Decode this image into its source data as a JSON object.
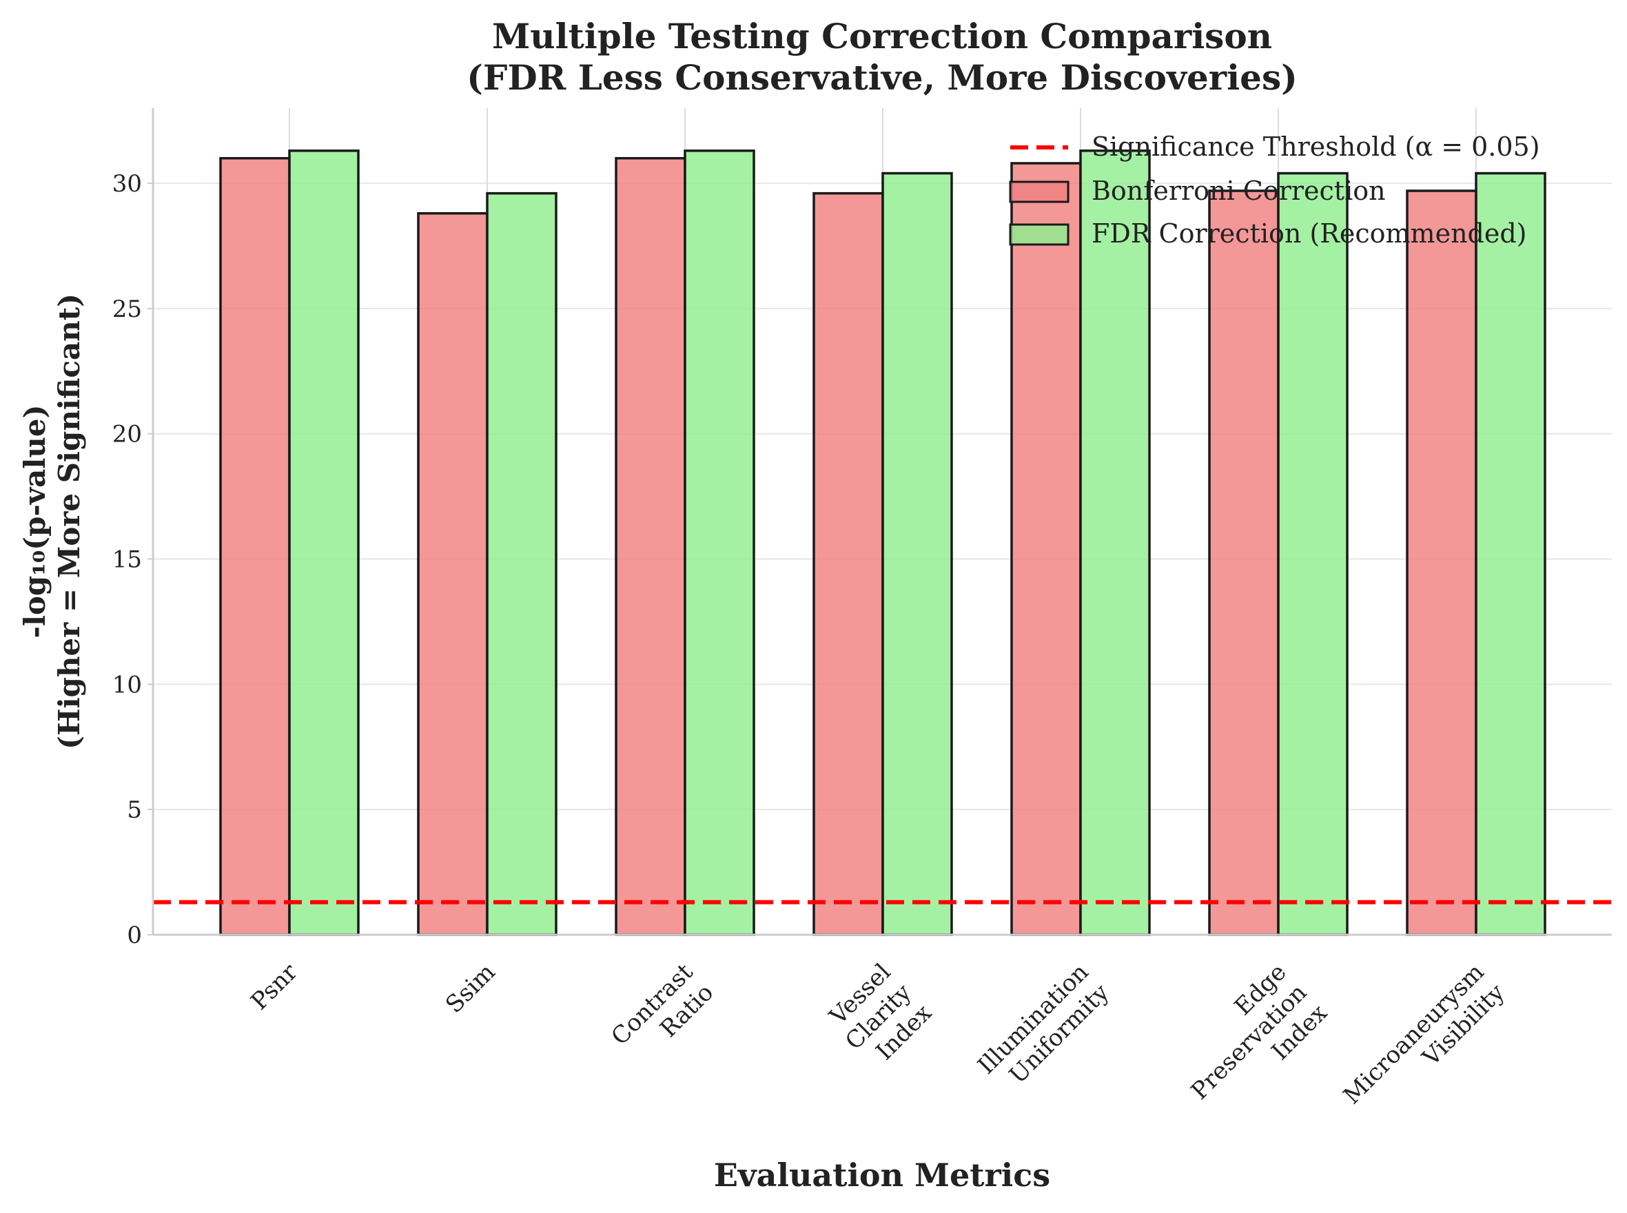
{
  "chart_data": {
    "type": "bar",
    "title": "Multiple Testing Correction Comparison\n(FDR Less Conservative, More Discoveries)",
    "xlabel": "Evaluation Metrics",
    "ylabel": "-log₁₀(p-value)\n(Higher = More Significant)",
    "ylim": [
      0,
      33
    ],
    "yticks": [
      0,
      5,
      10,
      15,
      20,
      25,
      30
    ],
    "grid": true,
    "legend_position": "top-right",
    "categories": [
      "Psnr",
      "Ssim",
      "Contrast\nRatio",
      "Vessel\nClarity\nIndex",
      "Illumination\nUniformity",
      "Edge\nPreservation\nIndex",
      "Microaneurysm\nVisibility"
    ],
    "series": [
      {
        "name": "Bonferroni Correction",
        "color": "#f08080",
        "values": [
          31.0,
          28.8,
          31.0,
          29.6,
          30.8,
          29.7,
          29.7
        ]
      },
      {
        "name": "FDR Correction (Recommended)",
        "color": "#90ee90",
        "values": [
          31.3,
          29.6,
          31.3,
          30.4,
          31.3,
          30.4,
          30.4
        ]
      }
    ],
    "threshold": {
      "label": "Significance Threshold (α = 0.05)",
      "value": 1.301,
      "color": "#ff0000"
    }
  }
}
